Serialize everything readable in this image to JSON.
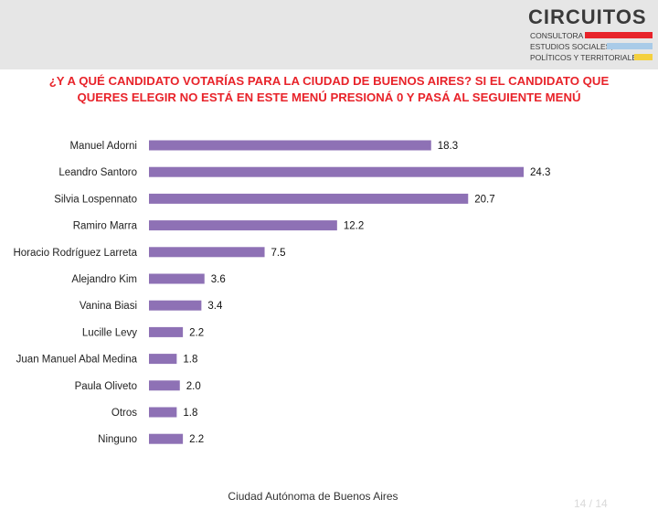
{
  "header": {
    "logo_title": "CIRCUITOS",
    "logo_lines": [
      "CONSULTORA DE",
      "ESTUDIOS SOCIALES,",
      "POLÍTICOS Y TERRITORIALES"
    ],
    "logo_bar_colors": [
      "#e8232a",
      "#a9cbe8",
      "#f4d03f"
    ]
  },
  "question_lines": [
    "¿Y A QUÉ CANDIDATO VOTARÍAS PARA LA CIUDAD DE BUENOS AIRES? SI EL CANDIDATO QUE",
    "QUERES ELEGIR NO ESTÁ EN ESTE MENÚ PRESIONÁ 0 Y PASÁ AL SEGUIENTE MENÚ"
  ],
  "footer": "Ciudad Autónoma de Buenos Aires",
  "page_number": "14 / 14",
  "colors": {
    "bar": "#8e71b5",
    "question": "#e8232a",
    "header_band": "#e6e6e6"
  },
  "chart_data": {
    "type": "bar",
    "orientation": "horizontal",
    "categories": [
      "Manuel Adorni",
      "Leandro Santoro",
      "Silvia Lospennato",
      "Ramiro Marra",
      "Horacio Rodríguez Larreta",
      "Alejandro Kim",
      "Vanina Biasi",
      "Lucille Levy",
      "Juan Manuel Abal Medina",
      "Paula Oliveto",
      "Otros",
      "Ninguno"
    ],
    "values": [
      18.3,
      24.3,
      20.7,
      12.2,
      7.5,
      3.6,
      3.4,
      2.2,
      1.8,
      2.0,
      1.8,
      2.2
    ],
    "value_labels": [
      "18.3",
      "24.3",
      "20.7",
      "12.2",
      "7.5",
      "3.6",
      "3.4",
      "2.2",
      "1.8",
      "2.0",
      "1.8",
      "2.2"
    ],
    "title": "",
    "xlabel": "",
    "ylabel": "",
    "xlim": [
      0,
      24.3
    ],
    "grid": false,
    "legend": "none"
  }
}
